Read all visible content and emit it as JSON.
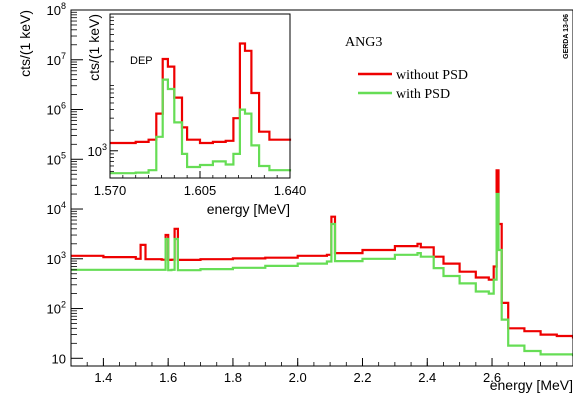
{
  "chart_data": {
    "type": "line",
    "label": "ANG3",
    "tag": "GERDA 13-06",
    "xlabel": "energy [MeV]",
    "ylabel": "cts/(1 keV)",
    "xlim": [
      1.3,
      2.85
    ],
    "ylim": [
      7,
      100000000
    ],
    "yscale": "log",
    "x_ticks": [
      1.4,
      1.6,
      1.8,
      2.0,
      2.2,
      2.4,
      2.6
    ],
    "x_tick_labels": [
      "1.4",
      "1.6",
      "1.8",
      "2.0",
      "2.2",
      "2.4",
      "2.6"
    ],
    "y_ticks": [
      10,
      100,
      1000,
      10000,
      100000,
      1000000,
      10000000,
      100000000
    ],
    "y_tick_labels": [
      [
        "10",
        ""
      ],
      [
        "10",
        "2"
      ],
      [
        "10",
        "3"
      ],
      [
        "10",
        "4"
      ],
      [
        "10",
        "5"
      ],
      [
        "10",
        "6"
      ],
      [
        "10",
        "7"
      ],
      [
        "10",
        "8"
      ]
    ],
    "legend": [
      {
        "name": "without PSD",
        "color": "#ee0000"
      },
      {
        "name": "with PSD",
        "color": "#66dd55"
      }
    ],
    "legend_position": "top-right",
    "series": [
      {
        "name": "without PSD",
        "color": "#ee0000",
        "x": [
          1.3,
          1.4,
          1.5,
          1.515,
          1.53,
          1.58,
          1.592,
          1.6,
          1.61,
          1.62,
          1.63,
          1.7,
          1.8,
          1.9,
          2.0,
          2.09,
          2.104,
          2.115,
          2.2,
          2.3,
          2.37,
          2.38,
          2.42,
          2.45,
          2.5,
          2.55,
          2.59,
          2.605,
          2.614,
          2.62,
          2.63,
          2.65,
          2.7,
          2.75,
          2.8,
          2.85
        ],
        "y": [
          1150,
          1080,
          1000,
          1900,
          980,
          960,
          3000,
          950,
          960,
          4000,
          950,
          980,
          1020,
          1050,
          1150,
          1200,
          7000,
          1300,
          1500,
          1800,
          2000,
          1700,
          1100,
          800,
          550,
          420,
          380,
          700,
          60000,
          5000,
          130,
          40,
          35,
          30,
          28,
          25
        ]
      },
      {
        "name": "with PSD",
        "color": "#66dd55",
        "x": [
          1.3,
          1.4,
          1.5,
          1.515,
          1.53,
          1.58,
          1.592,
          1.6,
          1.61,
          1.62,
          1.63,
          1.7,
          1.8,
          1.9,
          2.0,
          2.09,
          2.104,
          2.115,
          2.2,
          2.3,
          2.37,
          2.38,
          2.42,
          2.45,
          2.5,
          2.55,
          2.59,
          2.605,
          2.614,
          2.62,
          2.63,
          2.65,
          2.7,
          2.75,
          2.8,
          2.85
        ],
        "y": [
          600,
          600,
          600,
          600,
          600,
          600,
          2500,
          590,
          600,
          2500,
          590,
          620,
          660,
          720,
          800,
          880,
          5000,
          900,
          1000,
          1200,
          1300,
          1100,
          650,
          450,
          320,
          220,
          200,
          380,
          20000,
          1500,
          60,
          18,
          14,
          12,
          12,
          11
        ]
      }
    ],
    "inset": {
      "label": "DEP",
      "xlabel": "energy [MeV]",
      "ylabel": "cts/(1 keV)",
      "xlim": [
        1.57,
        1.64
      ],
      "ylim": [
        400,
        100000
      ],
      "yscale": "log",
      "x_ticks": [
        1.57,
        1.605,
        1.64
      ],
      "x_tick_labels": [
        "1.570",
        "1.605",
        "1.640"
      ],
      "y_ticks": [
        1000
      ],
      "y_tick_labels": [
        [
          "10",
          "3"
        ]
      ],
      "series": [
        {
          "name": "without PSD",
          "color": "#ee0000",
          "x": [
            1.57,
            1.58,
            1.585,
            1.588,
            1.5905,
            1.5925,
            1.595,
            1.598,
            1.6,
            1.605,
            1.61,
            1.615,
            1.618,
            1.6205,
            1.6225,
            1.625,
            1.628,
            1.632,
            1.64
          ],
          "y": [
            1300,
            1350,
            1450,
            3500,
            22000,
            17000,
            6000,
            2200,
            1450,
            1300,
            1350,
            1400,
            3000,
            37000,
            29000,
            7000,
            1900,
            1450,
            1400
          ]
        },
        {
          "name": "with PSD",
          "color": "#66dd55",
          "x": [
            1.57,
            1.58,
            1.585,
            1.588,
            1.5905,
            1.5925,
            1.595,
            1.598,
            1.6,
            1.605,
            1.61,
            1.615,
            1.618,
            1.6205,
            1.6225,
            1.625,
            1.628,
            1.632,
            1.64
          ],
          "y": [
            470,
            480,
            520,
            1600,
            11000,
            8000,
            2600,
            900,
            580,
            620,
            700,
            630,
            900,
            4000,
            3500,
            1200,
            600,
            520,
            500
          ]
        }
      ]
    }
  }
}
